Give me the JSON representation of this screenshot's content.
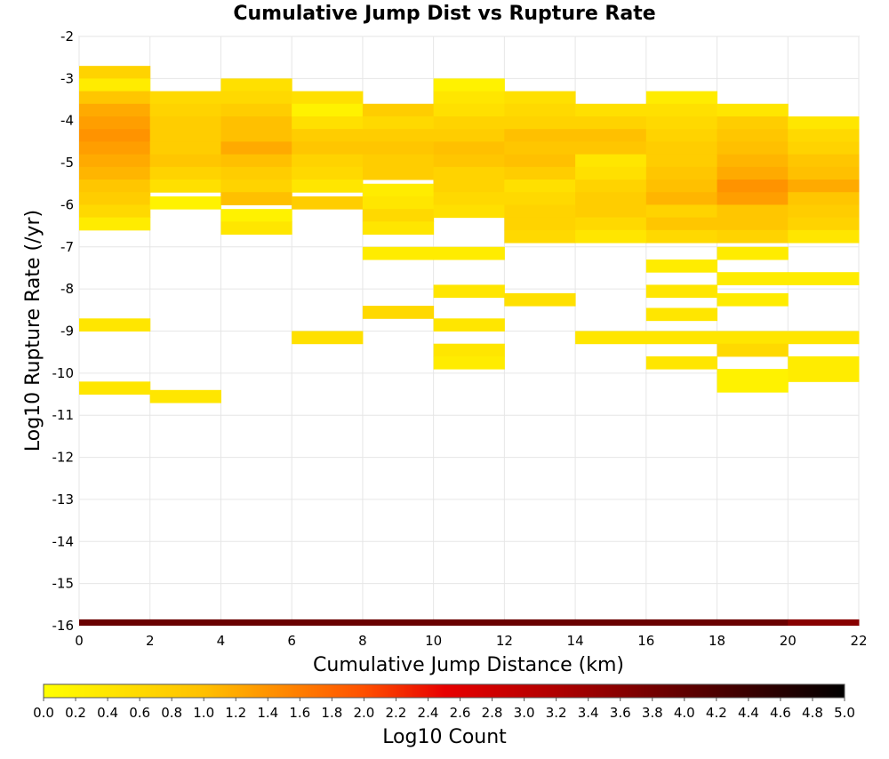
{
  "chart_data": {
    "type": "heatmap",
    "title": "Cumulative Jump Dist vs Rupture Rate",
    "xlabel": "Cumulative Jump Distance (km)",
    "ylabel": "Log10 Rupture Rate (/yr)",
    "xlim": [
      0,
      22
    ],
    "ylim": [
      -16,
      -2
    ],
    "x_ticks": [
      "0",
      "2",
      "4",
      "6",
      "8",
      "10",
      "12",
      "14",
      "16",
      "18",
      "20",
      "22"
    ],
    "y_ticks": [
      "-2",
      "-3",
      "-4",
      "-5",
      "-6",
      "-7",
      "-8",
      "-9",
      "-10",
      "-11",
      "-12",
      "-13",
      "-14",
      "-15",
      "-16"
    ],
    "grid": true,
    "x_bin_width": 2,
    "y_bin_height": 0.3,
    "columns": [
      {
        "x": 1,
        "cells": [
          [
            -2.85,
            0.7
          ],
          [
            -3.15,
            0.3
          ],
          [
            -3.45,
            0.9
          ],
          [
            -3.75,
            1.2
          ],
          [
            -4.05,
            1.3
          ],
          [
            -4.35,
            1.4
          ],
          [
            -4.65,
            1.3
          ],
          [
            -4.95,
            1.2
          ],
          [
            -5.25,
            1.1
          ],
          [
            -5.55,
            0.9
          ],
          [
            -5.85,
            0.8
          ],
          [
            -6.15,
            0.6
          ],
          [
            -6.45,
            0.3
          ],
          [
            -8.85,
            0.4
          ],
          [
            -10.35,
            0.4
          ]
        ]
      },
      {
        "x": 3,
        "cells": [
          [
            -3.45,
            0.6
          ],
          [
            -3.75,
            0.7
          ],
          [
            -4.05,
            0.8
          ],
          [
            -4.35,
            0.8
          ],
          [
            -4.65,
            0.8
          ],
          [
            -4.95,
            0.9
          ],
          [
            -5.25,
            0.7
          ],
          [
            -5.55,
            0.5
          ],
          [
            -5.95,
            0.2
          ],
          [
            -10.55,
            0.4
          ]
        ]
      },
      {
        "x": 5,
        "cells": [
          [
            -3.15,
            0.5
          ],
          [
            -3.45,
            0.6
          ],
          [
            -3.75,
            0.8
          ],
          [
            -4.05,
            1.0
          ],
          [
            -4.35,
            1.0
          ],
          [
            -4.65,
            1.2
          ],
          [
            -4.95,
            1.0
          ],
          [
            -5.25,
            0.8
          ],
          [
            -5.55,
            0.7
          ],
          [
            -5.85,
            1.0
          ],
          [
            -6.25,
            0.2
          ],
          [
            -6.55,
            0.4
          ]
        ]
      },
      {
        "x": 7,
        "cells": [
          [
            -3.45,
            0.5
          ],
          [
            -3.75,
            0.2
          ],
          [
            -4.05,
            0.5
          ],
          [
            -4.35,
            0.8
          ],
          [
            -4.65,
            0.9
          ],
          [
            -4.95,
            0.7
          ],
          [
            -5.25,
            0.6
          ],
          [
            -5.55,
            0.4
          ],
          [
            -5.95,
            0.8
          ],
          [
            -9.15,
            0.5
          ]
        ]
      },
      {
        "x": 9,
        "cells": [
          [
            -3.75,
            0.8
          ],
          [
            -4.05,
            0.6
          ],
          [
            -4.35,
            0.8
          ],
          [
            -4.65,
            0.9
          ],
          [
            -4.95,
            0.8
          ],
          [
            -5.25,
            0.8
          ],
          [
            -5.65,
            0.3
          ],
          [
            -5.95,
            0.4
          ],
          [
            -6.25,
            0.6
          ],
          [
            -6.55,
            0.4
          ],
          [
            -7.15,
            0.3
          ],
          [
            -8.55,
            0.6
          ]
        ]
      },
      {
        "x": 11,
        "cells": [
          [
            -3.15,
            0.2
          ],
          [
            -3.45,
            0.4
          ],
          [
            -3.75,
            0.5
          ],
          [
            -4.05,
            0.7
          ],
          [
            -4.35,
            0.8
          ],
          [
            -4.65,
            1.0
          ],
          [
            -4.95,
            0.9
          ],
          [
            -5.25,
            0.7
          ],
          [
            -5.55,
            0.7
          ],
          [
            -5.85,
            0.6
          ],
          [
            -6.15,
            0.5
          ],
          [
            -7.15,
            0.3
          ],
          [
            -8.05,
            0.4
          ],
          [
            -8.85,
            0.4
          ],
          [
            -9.45,
            0.4
          ],
          [
            -9.75,
            0.3
          ]
        ]
      },
      {
        "x": 13,
        "cells": [
          [
            -3.45,
            0.5
          ],
          [
            -3.75,
            0.6
          ],
          [
            -4.05,
            0.7
          ],
          [
            -4.35,
            1.0
          ],
          [
            -4.65,
            0.9
          ],
          [
            -4.95,
            1.0
          ],
          [
            -5.25,
            0.8
          ],
          [
            -5.55,
            0.5
          ],
          [
            -5.85,
            0.6
          ],
          [
            -6.15,
            0.7
          ],
          [
            -6.45,
            0.7
          ],
          [
            -6.75,
            0.6
          ],
          [
            -8.25,
            0.5
          ]
        ]
      },
      {
        "x": 15,
        "cells": [
          [
            -3.75,
            0.5
          ],
          [
            -4.05,
            0.7
          ],
          [
            -4.35,
            1.0
          ],
          [
            -4.65,
            0.9
          ],
          [
            -4.95,
            0.4
          ],
          [
            -5.25,
            0.5
          ],
          [
            -5.55,
            0.7
          ],
          [
            -5.85,
            0.8
          ],
          [
            -6.15,
            0.8
          ],
          [
            -6.45,
            0.6
          ],
          [
            -6.75,
            0.4
          ],
          [
            -9.15,
            0.4
          ]
        ]
      },
      {
        "x": 17,
        "cells": [
          [
            -3.45,
            0.3
          ],
          [
            -3.75,
            0.5
          ],
          [
            -4.05,
            0.6
          ],
          [
            -4.35,
            0.7
          ],
          [
            -4.65,
            0.8
          ],
          [
            -4.95,
            0.8
          ],
          [
            -5.25,
            0.9
          ],
          [
            -5.55,
            1.0
          ],
          [
            -5.85,
            1.1
          ],
          [
            -6.15,
            0.7
          ],
          [
            -6.45,
            0.9
          ],
          [
            -6.75,
            0.6
          ],
          [
            -7.45,
            0.3
          ],
          [
            -8.05,
            0.4
          ],
          [
            -8.6,
            0.4
          ],
          [
            -9.15,
            0.4
          ],
          [
            -9.75,
            0.4
          ]
        ]
      },
      {
        "x": 19,
        "cells": [
          [
            -3.75,
            0.4
          ],
          [
            -4.05,
            0.8
          ],
          [
            -4.35,
            0.9
          ],
          [
            -4.65,
            1.0
          ],
          [
            -4.95,
            1.1
          ],
          [
            -5.25,
            1.2
          ],
          [
            -5.55,
            1.4
          ],
          [
            -5.85,
            1.3
          ],
          [
            -6.15,
            0.9
          ],
          [
            -6.45,
            0.9
          ],
          [
            -6.75,
            0.7
          ],
          [
            -7.15,
            0.3
          ],
          [
            -7.75,
            0.3
          ],
          [
            -8.25,
            0.3
          ],
          [
            -9.15,
            0.4
          ],
          [
            -9.45,
            0.6
          ],
          [
            -10.05,
            0.2
          ],
          [
            -10.3,
            0.2
          ]
        ]
      },
      {
        "x": 21,
        "cells": [
          [
            -4.05,
            0.4
          ],
          [
            -4.35,
            0.6
          ],
          [
            -4.65,
            0.7
          ],
          [
            -4.95,
            0.9
          ],
          [
            -5.25,
            1.0
          ],
          [
            -5.55,
            1.2
          ],
          [
            -5.85,
            0.9
          ],
          [
            -6.15,
            0.8
          ],
          [
            -6.45,
            0.7
          ],
          [
            -6.75,
            0.4
          ],
          [
            -7.75,
            0.3
          ],
          [
            -9.15,
            0.4
          ],
          [
            -9.75,
            0.3
          ],
          [
            -10.05,
            0.3
          ]
        ]
      }
    ],
    "bottom_row": {
      "y": -15.93,
      "values": [
        3.9,
        3.9,
        3.9,
        3.9,
        3.9,
        3.9,
        3.9,
        3.9,
        3.9,
        3.9,
        3.6
      ]
    },
    "colorbar": {
      "label": "Log10 Count",
      "range": [
        0,
        5
      ],
      "ticks": [
        "0.0",
        "0.2",
        "0.4",
        "0.6",
        "0.8",
        "1.0",
        "1.2",
        "1.4",
        "1.6",
        "1.8",
        "2.0",
        "2.2",
        "2.4",
        "2.6",
        "2.8",
        "3.0",
        "3.2",
        "3.4",
        "3.6",
        "3.8",
        "4.0",
        "4.2",
        "4.4",
        "4.6",
        "4.8",
        "5.0"
      ],
      "stops": [
        {
          "v": 0.0,
          "color": "#ffff00"
        },
        {
          "v": 1.0,
          "color": "#ffc000"
        },
        {
          "v": 2.0,
          "color": "#ff5000"
        },
        {
          "v": 2.5,
          "color": "#e80000"
        },
        {
          "v": 3.2,
          "color": "#b00000"
        },
        {
          "v": 4.0,
          "color": "#600000"
        },
        {
          "v": 5.0,
          "color": "#000000"
        }
      ]
    }
  }
}
